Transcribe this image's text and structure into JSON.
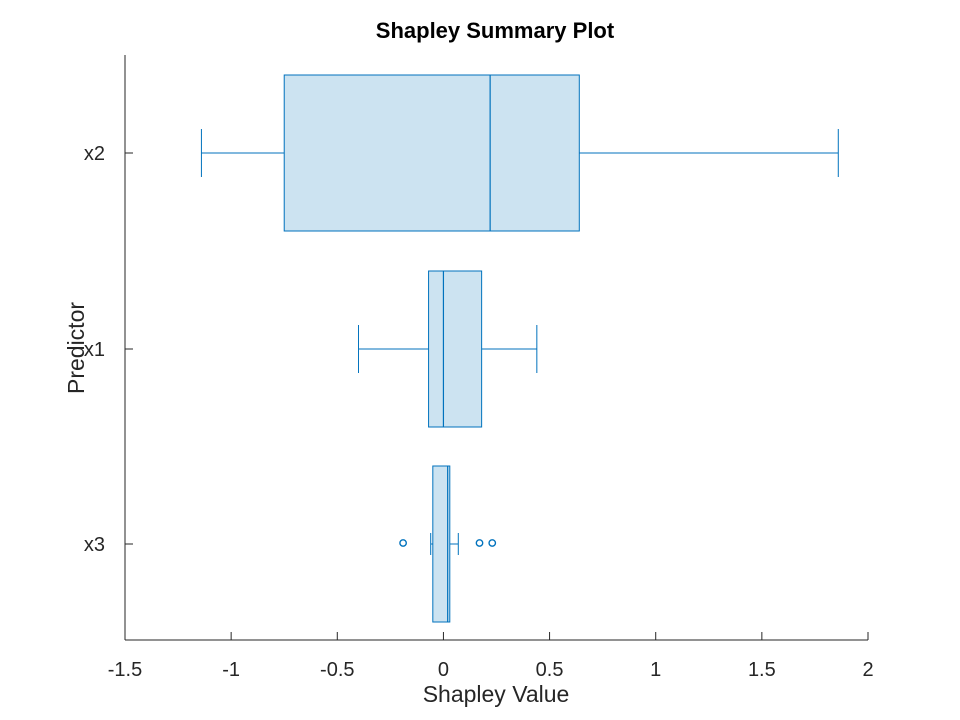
{
  "chart_data": {
    "type": "boxplot",
    "orientation": "horizontal",
    "title": "Shapley Summary Plot",
    "xlabel": "Shapley Value",
    "ylabel": "Predictor",
    "xlim": [
      -1.5,
      2
    ],
    "xticks": [
      -1.5,
      -1,
      -0.5,
      0,
      0.5,
      1,
      1.5,
      2
    ],
    "xtick_labels": [
      "-1.5",
      "-1",
      "-0.5",
      "0",
      "0.5",
      "1",
      "1.5",
      "2"
    ],
    "categories": [
      "x2",
      "x1",
      "x3"
    ],
    "boxes": [
      {
        "name": "x2",
        "whisker_low": -1.14,
        "q1": -0.75,
        "median": 0.22,
        "q3": 0.64,
        "whisker_high": 1.86,
        "outliers": []
      },
      {
        "name": "x1",
        "whisker_low": -0.4,
        "q1": -0.07,
        "median": 0.0,
        "q3": 0.18,
        "whisker_high": 0.44,
        "outliers": []
      },
      {
        "name": "x3",
        "whisker_low": -0.06,
        "q1": -0.05,
        "median": 0.02,
        "q3": 0.03,
        "whisker_high": 0.07,
        "outliers": [
          -0.19,
          0.17,
          0.23
        ]
      }
    ],
    "colors": {
      "box_fill": "#cce3f1",
      "box_edge": "#0072bd",
      "axis": "#262626"
    },
    "grid": false
  }
}
